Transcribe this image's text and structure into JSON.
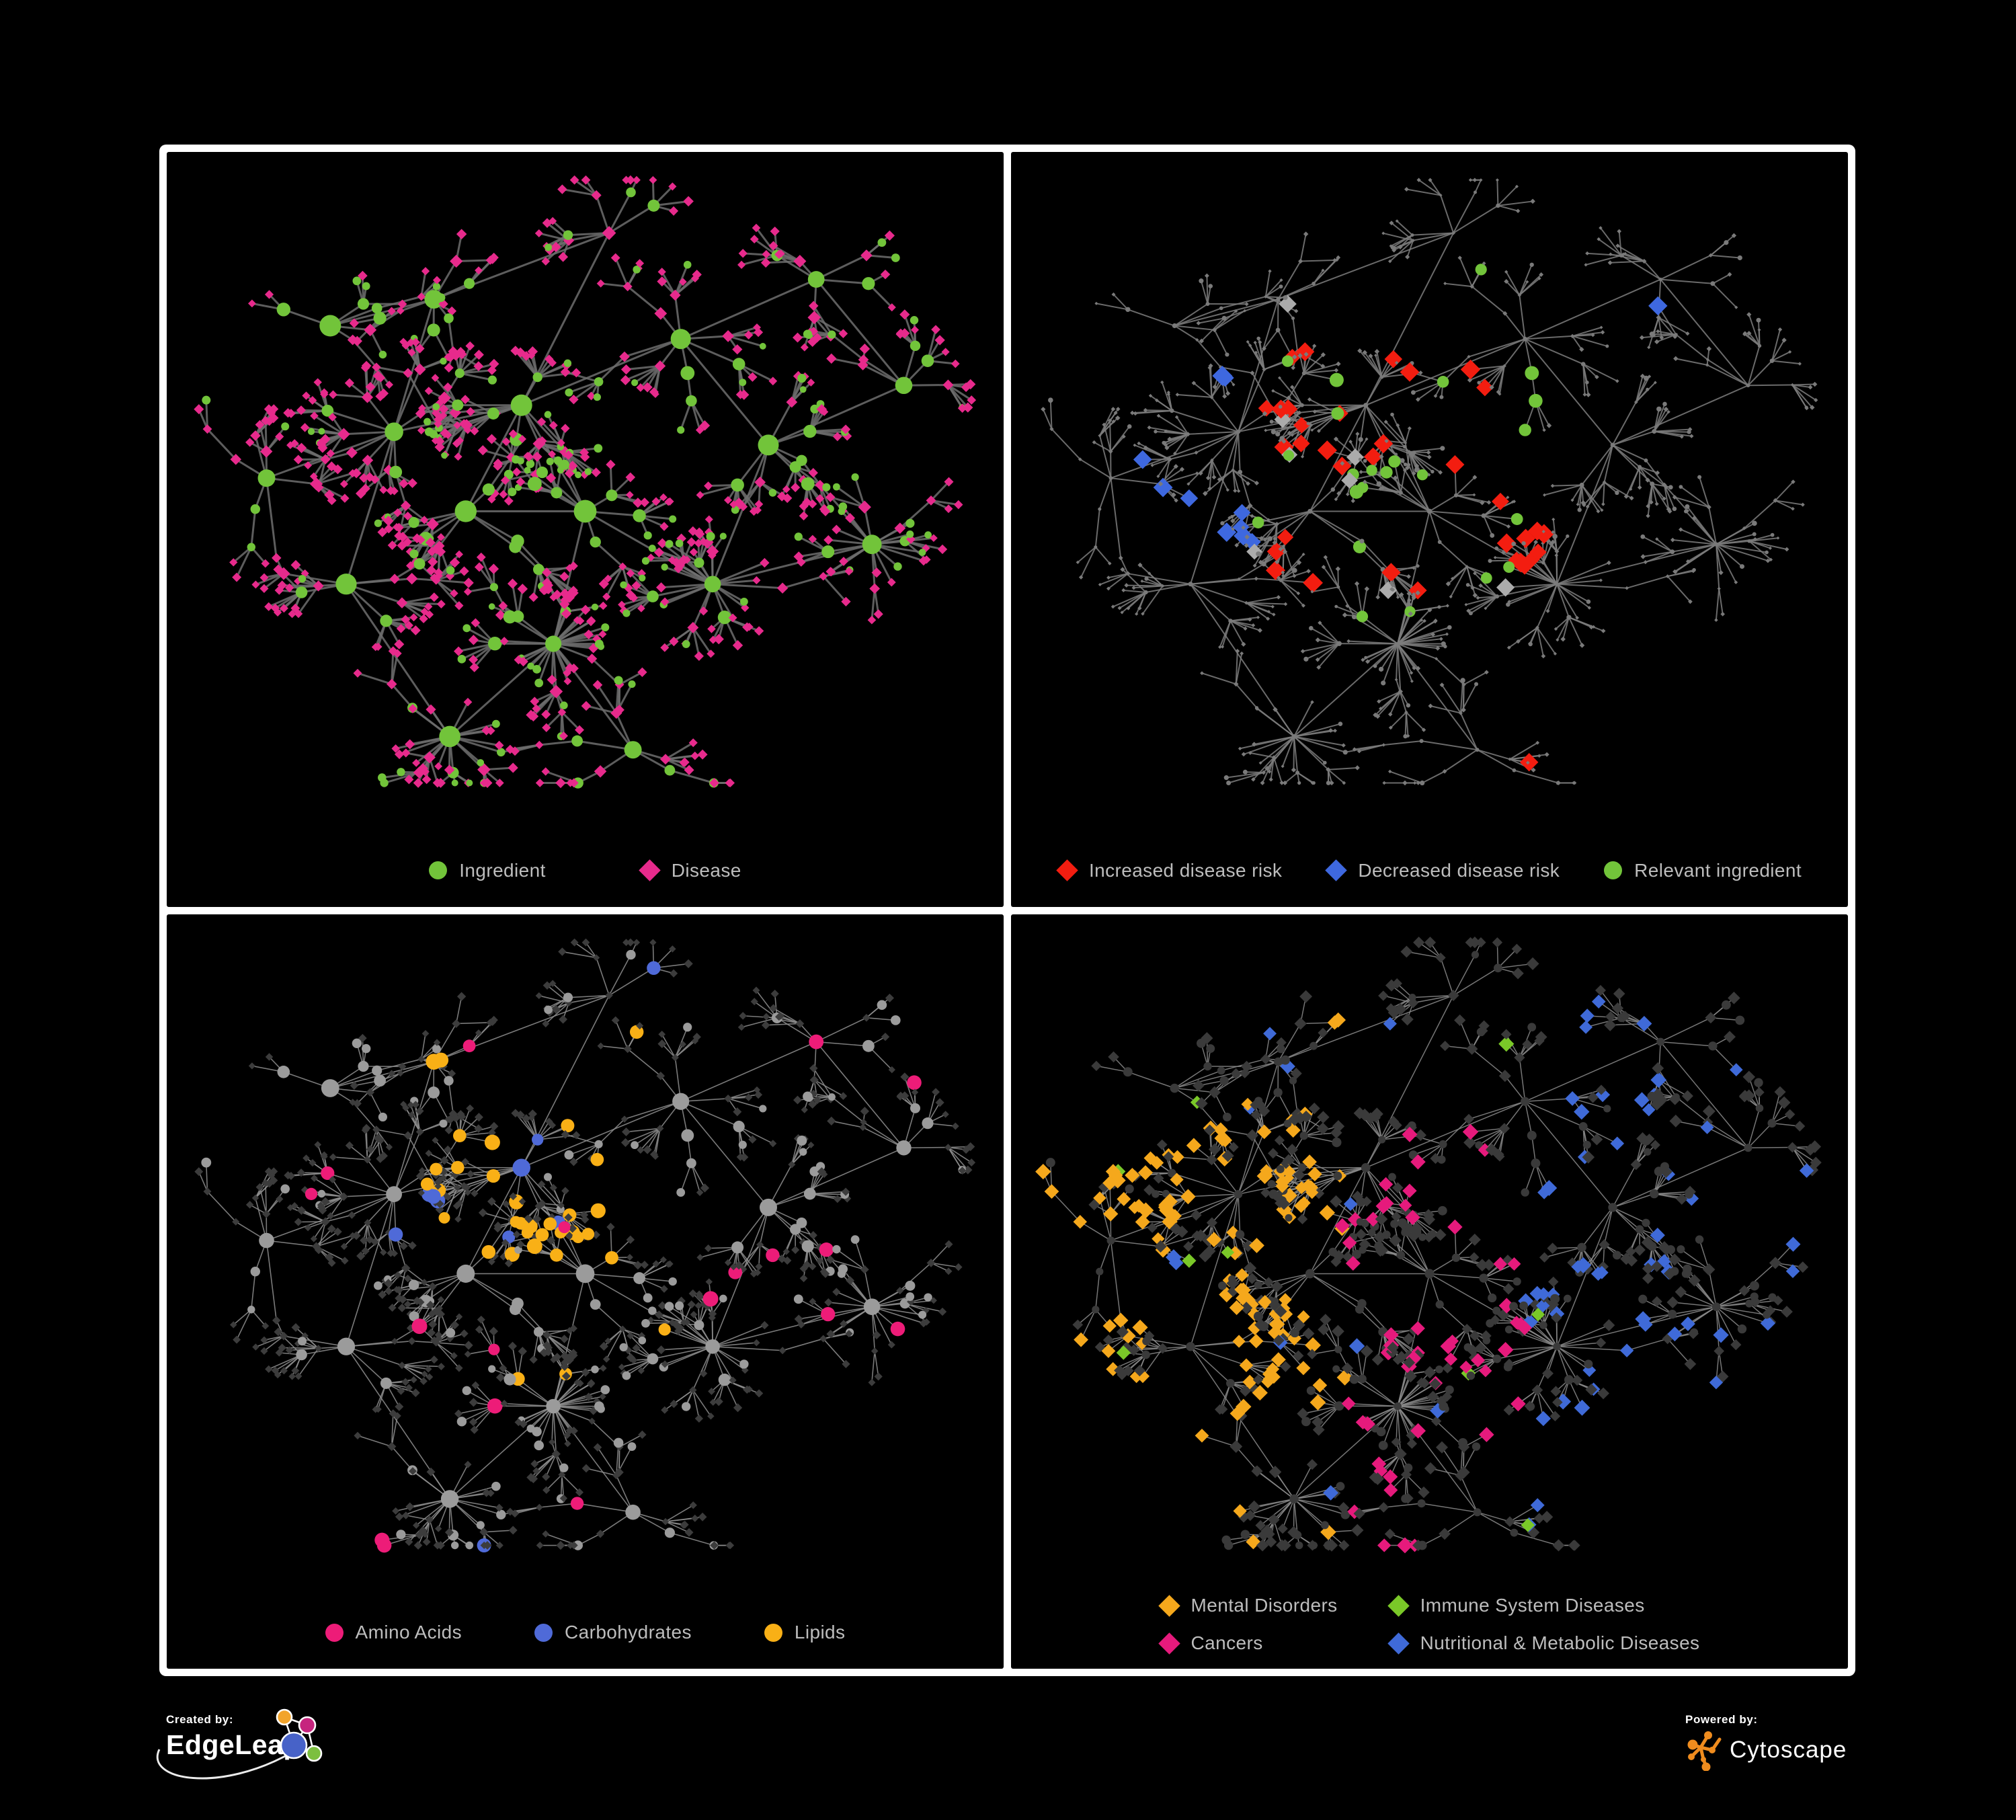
{
  "poster": {
    "background": "#000000",
    "frame_color": "#ffffff",
    "legend_text_color": "#bdbdbd"
  },
  "panels": [
    {
      "id": "ingredient-disease",
      "legend": [
        {
          "label": "Ingredient",
          "shape": "circle",
          "color": "#72c43a"
        },
        {
          "label": "Disease",
          "shape": "diamond",
          "color": "#e72a8c"
        }
      ]
    },
    {
      "id": "disease-risk",
      "legend": [
        {
          "label": "Increased disease risk",
          "shape": "diamond",
          "color": "#f31d10"
        },
        {
          "label": "Decreased disease risk",
          "shape": "diamond",
          "color": "#3e68df"
        },
        {
          "label": "Relevant ingredient",
          "shape": "circle",
          "color": "#72c43a"
        }
      ]
    },
    {
      "id": "nutrient-classes",
      "legend": [
        {
          "label": "Amino Acids",
          "shape": "circle",
          "color": "#ed1c78"
        },
        {
          "label": "Carbohydrates",
          "shape": "circle",
          "color": "#4f6ad8"
        },
        {
          "label": "Lipids",
          "shape": "circle",
          "color": "#f9b016"
        }
      ]
    },
    {
      "id": "disease-classes",
      "legend_layout": "two-column",
      "legend": [
        {
          "label": "Mental Disorders",
          "shape": "diamond",
          "color": "#f5a81c"
        },
        {
          "label": "Immune System Diseases",
          "shape": "diamond",
          "color": "#7ac828"
        },
        {
          "label": "Cancers",
          "shape": "diamond",
          "color": "#e61a7c"
        },
        {
          "label": "Nutritional & Metabolic Diseases",
          "shape": "diamond",
          "color": "#3f6ad8"
        }
      ]
    }
  ],
  "footer": {
    "created_by_label": "Created by:",
    "created_by_name": "EdgeLeap",
    "powered_by_label": "Powered by:",
    "powered_by_name": "Cytoscape",
    "edgeleap_logo_colors": {
      "orange": "#f2a42b",
      "magenta": "#c6247e",
      "blue": "#4762c8",
      "green": "#7cbf3f"
    },
    "cytoscape_logo_color": "#ef8c1e"
  },
  "network_styles": {
    "panel1": {
      "edge": "#6d6d6d",
      "circle": "#72c43a",
      "diamond": "#e72a8c"
    },
    "panel2": {
      "edge": "#7c7c7c",
      "base": "#7a7a7a",
      "increased": "#f31d10",
      "decreased": "#3e68df",
      "neutral": "#ababab",
      "ingredient": "#72c43a"
    },
    "panel3": {
      "edge": "#8f8f8f",
      "diamond": "#3c3c3c",
      "circle": "#9b9b9b",
      "amino": "#ed1c78",
      "carb": "#4f6ad8",
      "lipid": "#f9b016"
    },
    "panel4": {
      "edge": "#8b8b8b",
      "base": "#3a3a3a",
      "mental": "#f5a81c",
      "immune": "#7ac828",
      "cancer": "#e61a7c",
      "nutritional": "#3f6ad8"
    }
  }
}
